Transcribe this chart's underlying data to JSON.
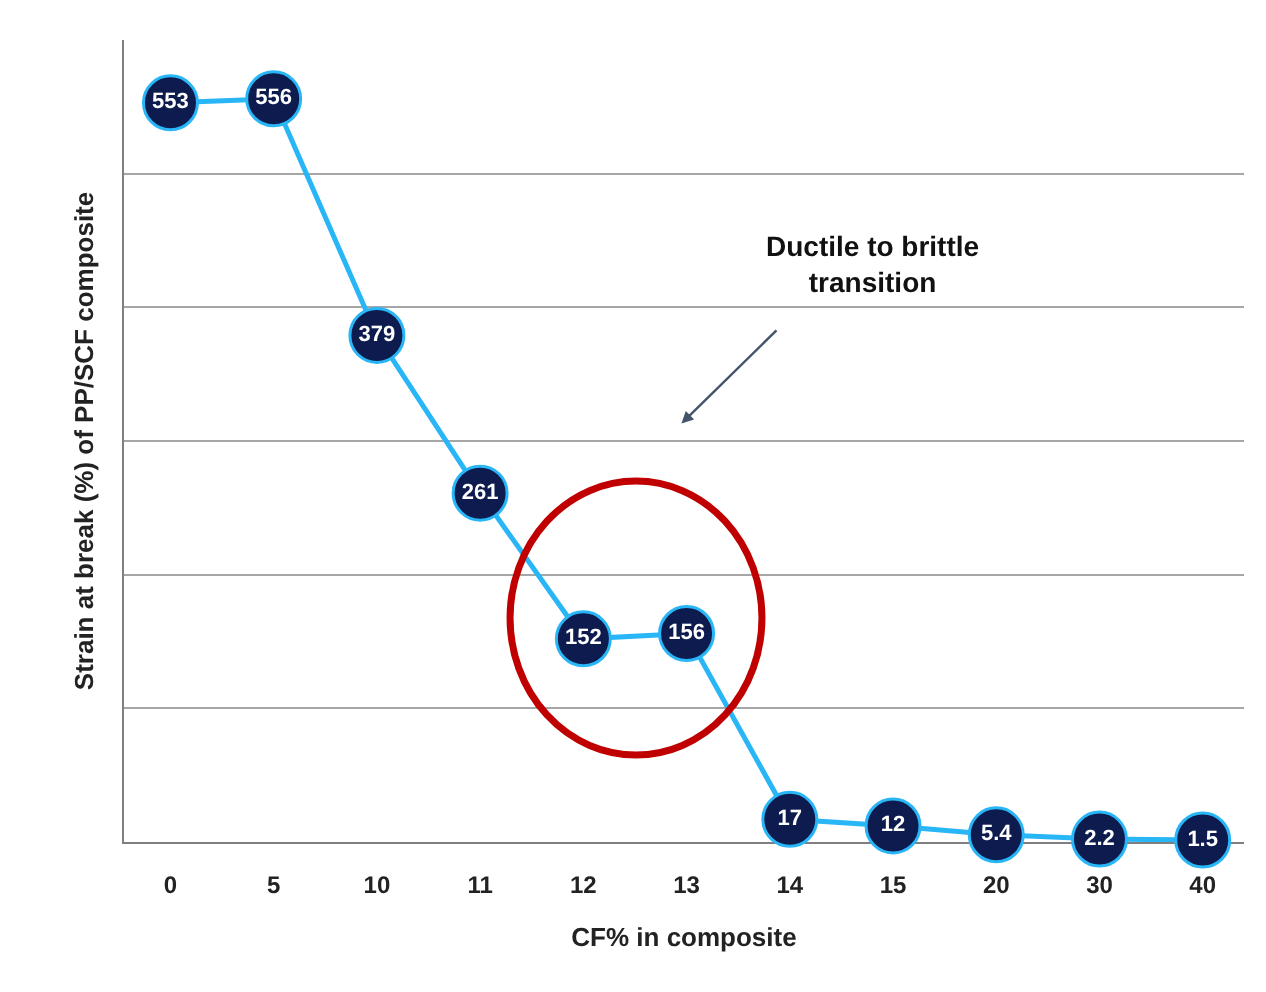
{
  "chart_data": {
    "type": "line",
    "xlabel": "CF% in composite",
    "ylabel": "Strain at break (%) of PP/SCF composite",
    "categories": [
      "0",
      "5",
      "10",
      "11",
      "12",
      "13",
      "14",
      "15",
      "20",
      "30",
      "40"
    ],
    "series": [
      {
        "color": "#29b6f6",
        "values": [
          553,
          556,
          379,
          261,
          152,
          156,
          17,
          12,
          5.4,
          2.2,
          1.5
        ]
      }
    ],
    "ylim": [
      0,
      600
    ],
    "yticks": [
      {
        "value": 0,
        "label": null
      },
      {
        "value": 100,
        "label": null
      },
      {
        "value": 200,
        "label": null
      },
      {
        "value": 300,
        "label": null
      },
      {
        "value": 400,
        "label": null
      },
      {
        "value": 500,
        "label": null
      }
    ],
    "grid": "y",
    "marker": "circle",
    "line_style": "solid",
    "data_labels": true,
    "annotations": [
      "Ductile to brittle\ntransition"
    ]
  }
}
